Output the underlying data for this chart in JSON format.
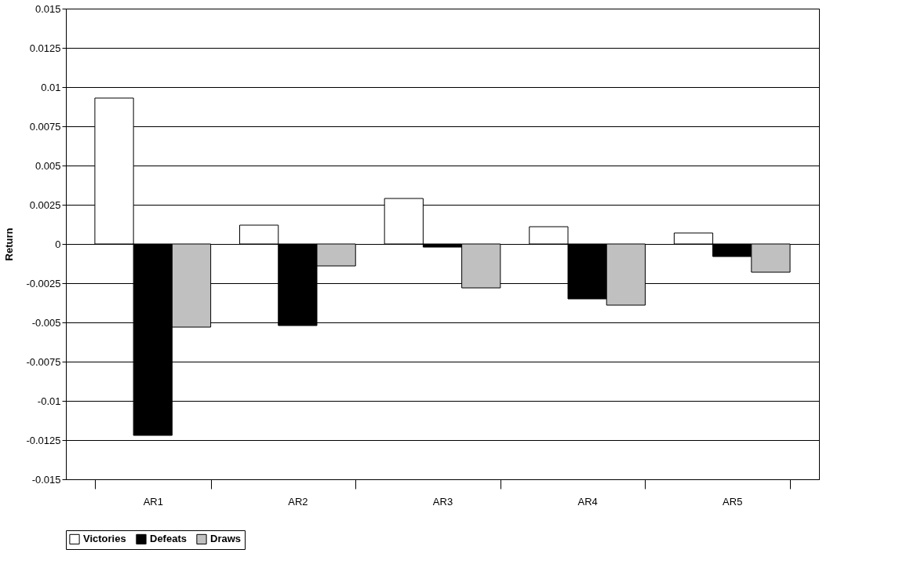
{
  "chart_data": {
    "type": "bar",
    "ylabel": "Return",
    "categories": [
      "AR1",
      "AR2",
      "AR3",
      "AR4",
      "AR5"
    ],
    "series": [
      {
        "name": "Victories",
        "color": "#ffffff",
        "values": [
          0.0093,
          0.0012,
          0.0029,
          0.0011,
          0.0007
        ]
      },
      {
        "name": "Defeats",
        "color": "#000000",
        "values": [
          -0.0122,
          -0.0052,
          -0.0002,
          -0.0035,
          -0.0008
        ]
      },
      {
        "name": "Draws",
        "color": "#c0c0c0",
        "values": [
          -0.0053,
          -0.0014,
          -0.0028,
          -0.0039,
          -0.0018
        ]
      }
    ],
    "ylim": [
      -0.015,
      0.015
    ],
    "yticks": [
      -0.015,
      -0.0125,
      -0.01,
      -0.0075,
      -0.005,
      -0.0025,
      0,
      0.0025,
      0.005,
      0.0075,
      0.01,
      0.0125,
      0.015
    ],
    "grid": "y",
    "legend": "bottom"
  }
}
